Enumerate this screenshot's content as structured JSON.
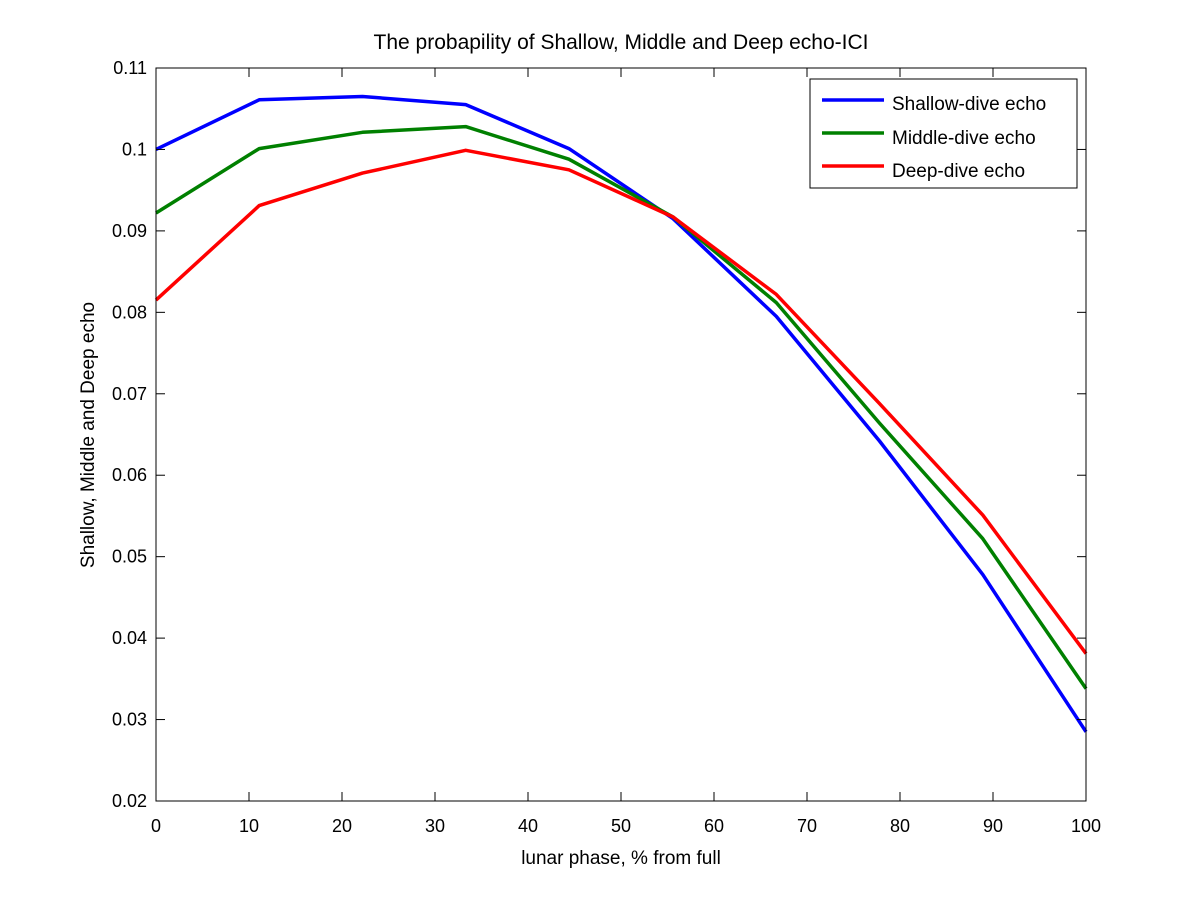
{
  "chart_data": {
    "type": "line",
    "title": "The probapility of Shallow, Middle and Deep echo-ICI",
    "xlabel": "lunar phase, % from full",
    "ylabel": "Shallow, Middle and Deep echo",
    "xlim": [
      0,
      100
    ],
    "ylim": [
      0.02,
      0.11
    ],
    "xticks": [
      0,
      10,
      20,
      30,
      40,
      50,
      60,
      70,
      80,
      90,
      100
    ],
    "xtick_labels": [
      "0",
      "10",
      "20",
      "30",
      "40",
      "50",
      "60",
      "70",
      "80",
      "90",
      "100"
    ],
    "yticks": [
      0.02,
      0.03,
      0.04,
      0.05,
      0.06,
      0.07,
      0.08,
      0.09,
      0.1,
      0.11
    ],
    "ytick_labels": [
      "0.02",
      "0.03",
      "0.04",
      "0.05",
      "0.06",
      "0.07",
      "0.08",
      "0.09",
      "0.1",
      "0.11"
    ],
    "grid": false,
    "legend_position": "top-right",
    "x": [
      0,
      11.1,
      22.2,
      33.3,
      44.4,
      55.6,
      66.7,
      77.8,
      88.9,
      100
    ],
    "series": [
      {
        "name": "Shallow-dive echo",
        "color": "#0000ff",
        "values": [
          0.1,
          0.1061,
          0.1065,
          0.1055,
          0.1001,
          0.0915,
          0.0795,
          0.0642,
          0.0478,
          0.0285
        ]
      },
      {
        "name": "Middle-dive echo",
        "color": "#008000",
        "values": [
          0.0922,
          0.1001,
          0.1021,
          0.1028,
          0.0988,
          0.0917,
          0.0812,
          0.0664,
          0.0522,
          0.0338
        ]
      },
      {
        "name": "Deep-dive echo",
        "color": "#ff0000",
        "values": [
          0.0815,
          0.0931,
          0.0971,
          0.0999,
          0.0975,
          0.0917,
          0.0822,
          0.0688,
          0.0551,
          0.0381
        ]
      }
    ]
  }
}
